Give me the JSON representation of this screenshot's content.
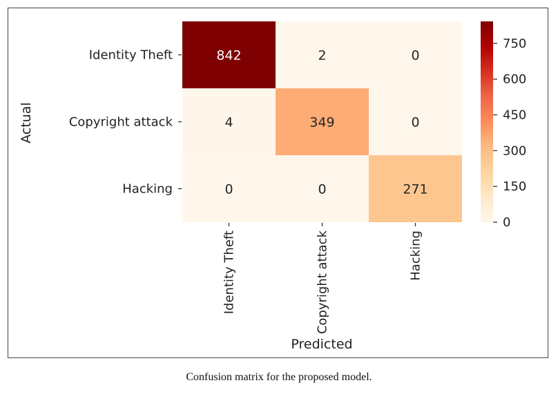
{
  "chart_data": {
    "type": "heatmap",
    "title": "",
    "xlabel": "Predicted",
    "ylabel": "Actual",
    "x_categories": [
      "Identity Theft",
      "Copyright attack",
      "Hacking"
    ],
    "y_categories": [
      "Identity Theft",
      "Copyright attack",
      "Hacking"
    ],
    "values": [
      [
        842,
        2,
        0
      ],
      [
        4,
        349,
        0
      ],
      [
        0,
        0,
        271
      ]
    ],
    "colorbar": {
      "min": 0,
      "max": 842,
      "ticks": [
        0,
        150,
        300,
        450,
        600,
        750
      ],
      "colormap": "OrRd"
    }
  },
  "caption": "Confusion matrix for the proposed model."
}
